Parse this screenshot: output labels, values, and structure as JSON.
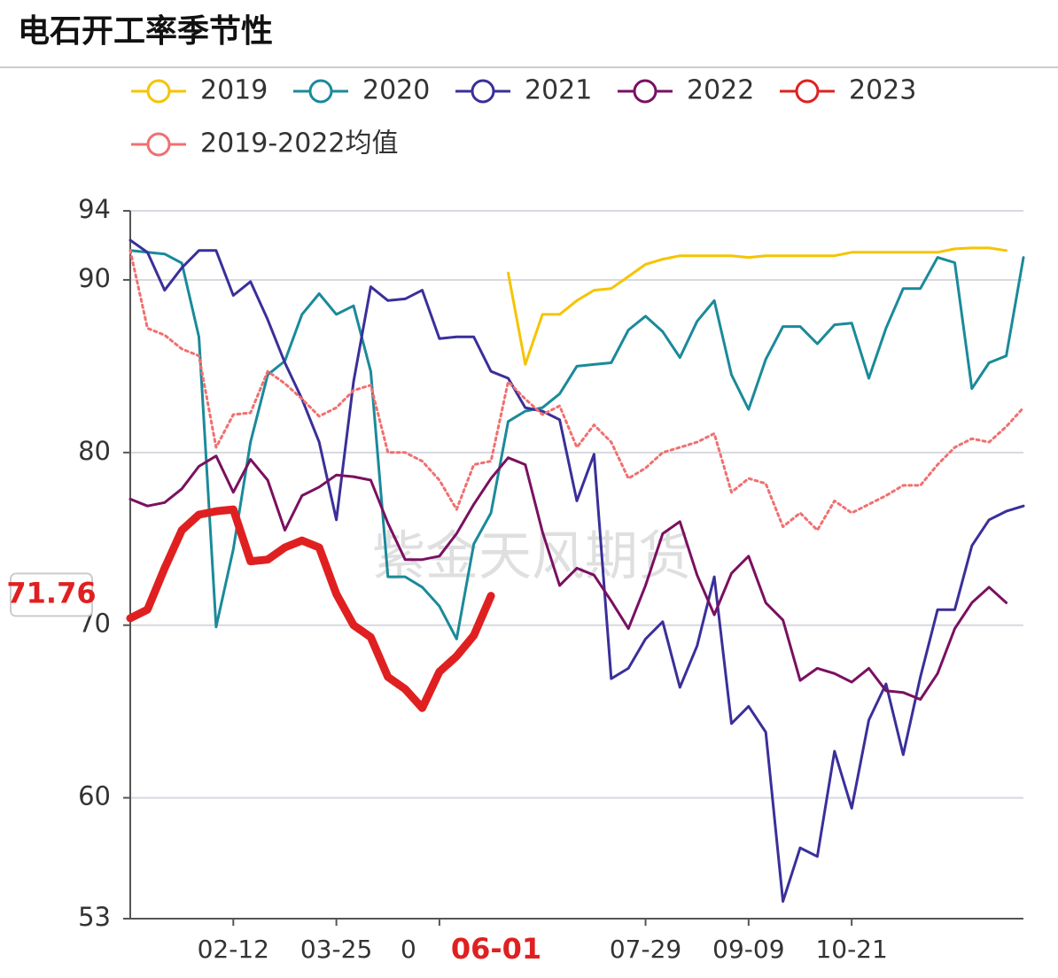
{
  "chart_data": {
    "type": "line",
    "title": "电石开工率季节性",
    "watermark": "紫金天风期货",
    "categories": [
      null,
      null,
      null,
      null,
      null,
      null,
      "02-12",
      null,
      null,
      null,
      null,
      null,
      "03-25",
      null,
      null,
      null,
      null,
      null,
      "0",
      null,
      null,
      null,
      null,
      null,
      null,
      null,
      null,
      null,
      null,
      null,
      "07-29",
      null,
      null,
      null,
      null,
      null,
      "09-09",
      null,
      null,
      null,
      null,
      null,
      "10-21",
      null,
      null,
      null,
      null,
      null,
      null,
      null,
      null,
      null,
      null
    ],
    "ylim": [
      53,
      94
    ],
    "yticks": [
      53,
      60,
      70,
      80,
      90,
      94
    ],
    "grid": true,
    "cursor": {
      "x_label": "06-01",
      "y": 71.76,
      "color": "#e02020"
    },
    "series": [
      {
        "name": "2019",
        "color": "#f5c400",
        "style": "solid",
        "width": 3,
        "values": [
          null,
          null,
          null,
          null,
          null,
          null,
          null,
          null,
          null,
          null,
          null,
          null,
          null,
          null,
          null,
          null,
          null,
          null,
          null,
          null,
          null,
          null,
          90.4,
          85.1,
          88,
          88,
          88.8,
          89.4,
          89.5,
          90.2,
          90.9,
          91.2,
          91.4,
          91.4,
          91.4,
          91.4,
          91.3,
          91.4,
          91.4,
          91.4,
          91.4,
          91.4,
          91.6,
          91.6,
          91.6,
          91.6,
          91.6,
          91.6,
          91.8,
          91.85,
          91.85,
          91.7,
          null
        ]
      },
      {
        "name": "2020",
        "color": "#1a8a9a",
        "style": "solid",
        "width": 3,
        "values": [
          91.7,
          91.6,
          91.5,
          90.97,
          86.7,
          69.9,
          74.4,
          80.6,
          84.5,
          85.3,
          88,
          89.2,
          88,
          88.5,
          84.7,
          72.8,
          72.8,
          72.2,
          71.1,
          69.2,
          74.7,
          76.5,
          81.8,
          82.4,
          82.6,
          83.4,
          85,
          85.1,
          85.2,
          87.1,
          87.9,
          87,
          85.5,
          87.6,
          88.8,
          84.5,
          82.5,
          85.4,
          87.3,
          87.3,
          86.3,
          87.4,
          87.5,
          84.3,
          87.2,
          89.5,
          89.5,
          91.3,
          91,
          83.7,
          85.2,
          85.6,
          91.3
        ]
      },
      {
        "name": "2021",
        "color": "#3a2f9a",
        "style": "solid",
        "width": 3,
        "values": [
          92.3,
          91.6,
          89.4,
          90.7,
          91.7,
          91.7,
          89.1,
          89.9,
          87.7,
          85.2,
          83.1,
          80.6,
          76.1,
          84.1,
          89.6,
          88.8,
          88.9,
          89.4,
          86.6,
          86.7,
          86.7,
          84.7,
          84.3,
          82.6,
          82.4,
          81.9,
          77.2,
          79.9,
          66.9,
          67.5,
          69.2,
          70.2,
          66.4,
          68.8,
          72.8,
          64.3,
          65.3,
          63.8,
          54,
          57.1,
          56.6,
          62.7,
          59.4,
          64.5,
          66.6,
          62.5,
          67,
          70.9,
          70.9,
          74.6,
          76.1,
          76.6,
          76.9
        ]
      },
      {
        "name": "2022",
        "color": "#7a1060",
        "style": "solid",
        "width": 3,
        "values": [
          77.3,
          76.9,
          77.1,
          77.9,
          79.2,
          79.8,
          77.7,
          79.6,
          78.4,
          75.5,
          77.5,
          78,
          78.7,
          78.6,
          78.4,
          75.9,
          73.8,
          73.8,
          74,
          75.3,
          77,
          78.5,
          79.7,
          79.3,
          75.4,
          72.3,
          73.3,
          72.9,
          71.4,
          69.8,
          72.3,
          75.3,
          76,
          72.9,
          70.6,
          73,
          74,
          71.3,
          70.3,
          66.8,
          67.5,
          67.2,
          66.7,
          67.5,
          66.2,
          66.1,
          65.7,
          67.2,
          69.8,
          71.3,
          72.2,
          71.3,
          null
        ]
      },
      {
        "name": "2023",
        "color": "#e02020",
        "style": "solid",
        "width": 9,
        "values": [
          70.4,
          70.9,
          73.3,
          75.5,
          76.4,
          76.6,
          76.7,
          73.7,
          73.8,
          74.5,
          74.9,
          74.5,
          71.8,
          70,
          69.3,
          67,
          66.3,
          65.2,
          67.3,
          68.2,
          69.4,
          71.7,
          null,
          null,
          null,
          null,
          null,
          null,
          null,
          null,
          null,
          null,
          null,
          null,
          null,
          null,
          null,
          null,
          null,
          null,
          null,
          null,
          null,
          null,
          null,
          null,
          null,
          null,
          null,
          null,
          null,
          null,
          null
        ]
      },
      {
        "name": "2019-2022均值",
        "color": "#f07070",
        "style": "dotted",
        "width": 3,
        "values": [
          91.7,
          87.2,
          86.8,
          86,
          85.6,
          80.3,
          82.2,
          82.3,
          84.7,
          84,
          83.1,
          82.1,
          82.6,
          83.6,
          83.9,
          80,
          80,
          79.5,
          78.4,
          76.7,
          79.3,
          79.5,
          84.1,
          83.1,
          82.2,
          82.7,
          80.3,
          81.6,
          80.6,
          78.5,
          79.1,
          80,
          80.3,
          80.6,
          81.1,
          77.7,
          78.5,
          78.2,
          75.7,
          76.5,
          75.5,
          77.2,
          76.5,
          77,
          77.5,
          78.1,
          78.1,
          79.3,
          80.3,
          80.8,
          80.6,
          81.5,
          82.6
        ]
      }
    ]
  }
}
